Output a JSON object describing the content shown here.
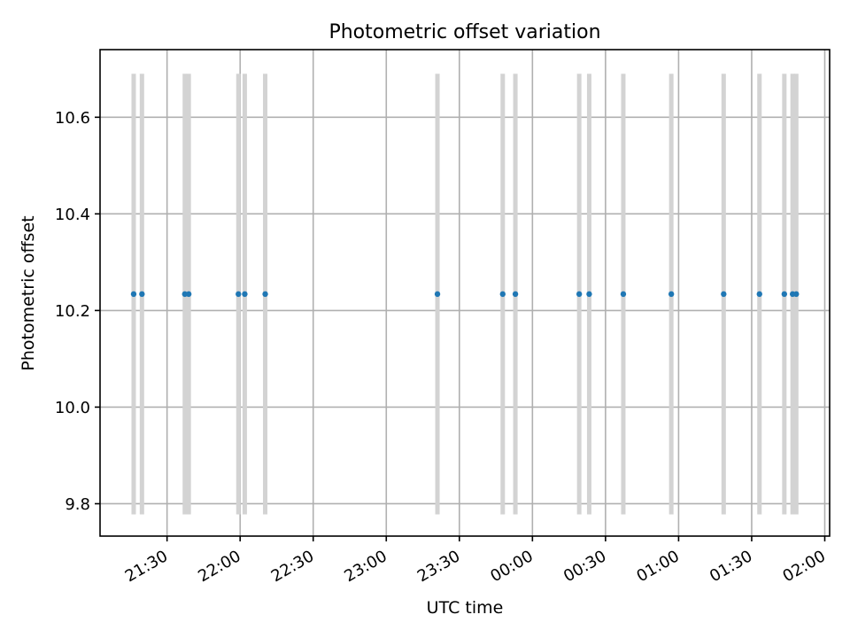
{
  "chart_data": {
    "type": "scatter",
    "title": "Photometric offset variation",
    "xlabel": "UTC time",
    "ylabel": "Photometric offset",
    "x_ticks": [
      "21:30",
      "22:00",
      "22:30",
      "23:00",
      "23:30",
      "00:00",
      "00:30",
      "01:00",
      "01:30",
      "02:00"
    ],
    "x_tick_minutes": [
      0,
      30,
      60,
      90,
      120,
      150,
      180,
      210,
      240,
      270
    ],
    "y_ticks": [
      "9.8",
      "10.0",
      "10.2",
      "10.4",
      "10.6"
    ],
    "y_tick_values": [
      9.8,
      10.0,
      10.2,
      10.4,
      10.6
    ],
    "xlim_minutes": [
      -27.5,
      272
    ],
    "ylim": [
      9.733,
      10.74
    ],
    "grid": true,
    "point_color": "#1f77b4",
    "errorbar_color": "#d3d3d3",
    "series": [
      {
        "x_minutes": [
          -13.7,
          -10.3,
          7.3,
          8.9,
          29.3,
          31.9,
          40.3,
          111.0,
          137.8,
          143.0,
          169.2,
          173.3,
          187.3,
          207.0,
          228.5,
          243.2,
          253.4,
          256.8,
          258.3
        ],
        "y": [
          10.234,
          10.234,
          10.234,
          10.234,
          10.234,
          10.234,
          10.234,
          10.234,
          10.234,
          10.234,
          10.234,
          10.234,
          10.234,
          10.234,
          10.234,
          10.234,
          10.234,
          10.234,
          10.234
        ],
        "y_err": [
          0.456,
          0.456,
          0.456,
          0.456,
          0.456,
          0.456,
          0.456,
          0.456,
          0.456,
          0.456,
          0.456,
          0.456,
          0.456,
          0.456,
          0.456,
          0.456,
          0.456,
          0.456,
          0.456
        ]
      }
    ]
  }
}
